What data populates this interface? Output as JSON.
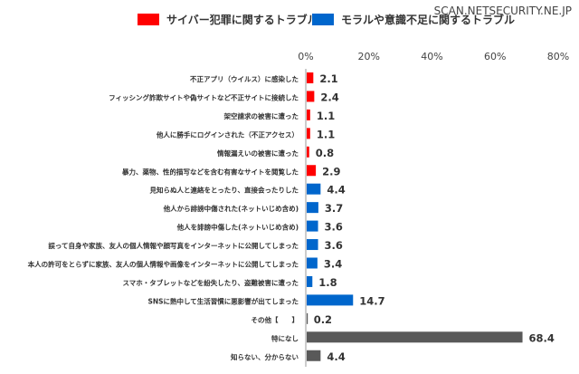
{
  "watermark": "SCAN.NETSECURITY.NE.JP",
  "chart_data": {
    "type": "bar",
    "orientation": "horizontal",
    "xlim": [
      0,
      80
    ],
    "ticks": [
      "0%",
      "20%",
      "40%",
      "60%",
      "80%"
    ],
    "tick_values": [
      0,
      20,
      40,
      60,
      80
    ],
    "grid": false,
    "legend_placement": "top-left",
    "legend": [
      {
        "name": "サイバー犯罪に関するトラブル",
        "color": "#ff0000"
      },
      {
        "name": "モラルや意識不足に関するトラブル",
        "color": "#0066cc"
      }
    ],
    "other_color": "#595959",
    "categories": [
      "不正アプリ（ウイルス）に感染した",
      "フィッシング詐欺サイトや偽サイトなど不正サイトに接続した",
      "架空請求の被害に遭った",
      "他人に勝手にログインされた（不正アクセス）",
      "情報漏えいの被害に遭った",
      "暴力、薬物、性的描写などを含む有害なサイトを閲覧した",
      "見知らぬ人と連絡をとったり、直接会ったりした",
      "他人から誹謗中傷された(ネットいじめ含め)",
      "他人を誹謗中傷した(ネットいじめ含め)",
      "誤って自身や家族、友人の個人情報や顔写真をインターネットに公開してしまった",
      "本人の許可をとらずに家族、友人の個人情報や画像をインターネットに公開してしまった",
      "スマホ・タブレットなどを紛失したり、盗難被害に遭った",
      "SNSに熱中して生活習慣に悪影響が出てしまった",
      "その他【　　】",
      "特になし",
      "知らない、分からない"
    ],
    "values": [
      2.1,
      2.4,
      1.1,
      1.1,
      0.8,
      2.9,
      4.4,
      3.7,
      3.6,
      3.6,
      3.4,
      1.8,
      14.7,
      0.2,
      68.4,
      4.4
    ],
    "groups": [
      "cyber",
      "cyber",
      "cyber",
      "cyber",
      "cyber",
      "cyber",
      "moral",
      "moral",
      "moral",
      "moral",
      "moral",
      "moral",
      "moral",
      "other",
      "other",
      "other"
    ]
  }
}
